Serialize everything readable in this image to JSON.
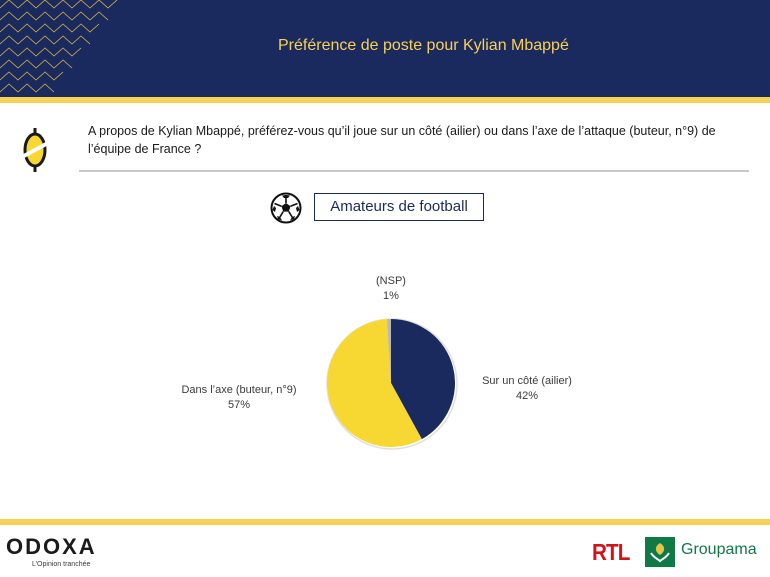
{
  "header": {
    "title": "Préférence de poste pour Kylian Mbappé",
    "background_color": "#1b2a5e",
    "accent_color": "#f7d154"
  },
  "question": {
    "text": "A propos de Kylian Mbappé, préférez-vous qu’il joue sur un côté (ailier) ou dans l’axe de l’attaque (buteur, n°9) de l’équipe de France ?",
    "icon": "odoxa-o-icon"
  },
  "segment": {
    "icon": "football-icon",
    "label": "Amateurs de football"
  },
  "chart_data": {
    "type": "pie",
    "start_angle_deg": 0,
    "direction": "clockwise",
    "slices": [
      {
        "label": "Sur un côté (ailier)",
        "value": 42,
        "value_label": "42%",
        "color": "#1b2a5e"
      },
      {
        "label": "Dans l’axe (buteur, n°9)",
        "value": 57,
        "value_label": "57%",
        "color": "#f7d731"
      },
      {
        "label": "(NSP)",
        "value": 1,
        "value_label": "1%",
        "color": "#b8b8b8"
      }
    ],
    "legend": "none"
  },
  "footer": {
    "brand": "ODOXA",
    "tagline": "L’Opinion tranchée",
    "partner1": "RTL",
    "partner2": "Groupama",
    "partner1_color": "#d4121a",
    "partner2_color": "#0f7a46"
  }
}
